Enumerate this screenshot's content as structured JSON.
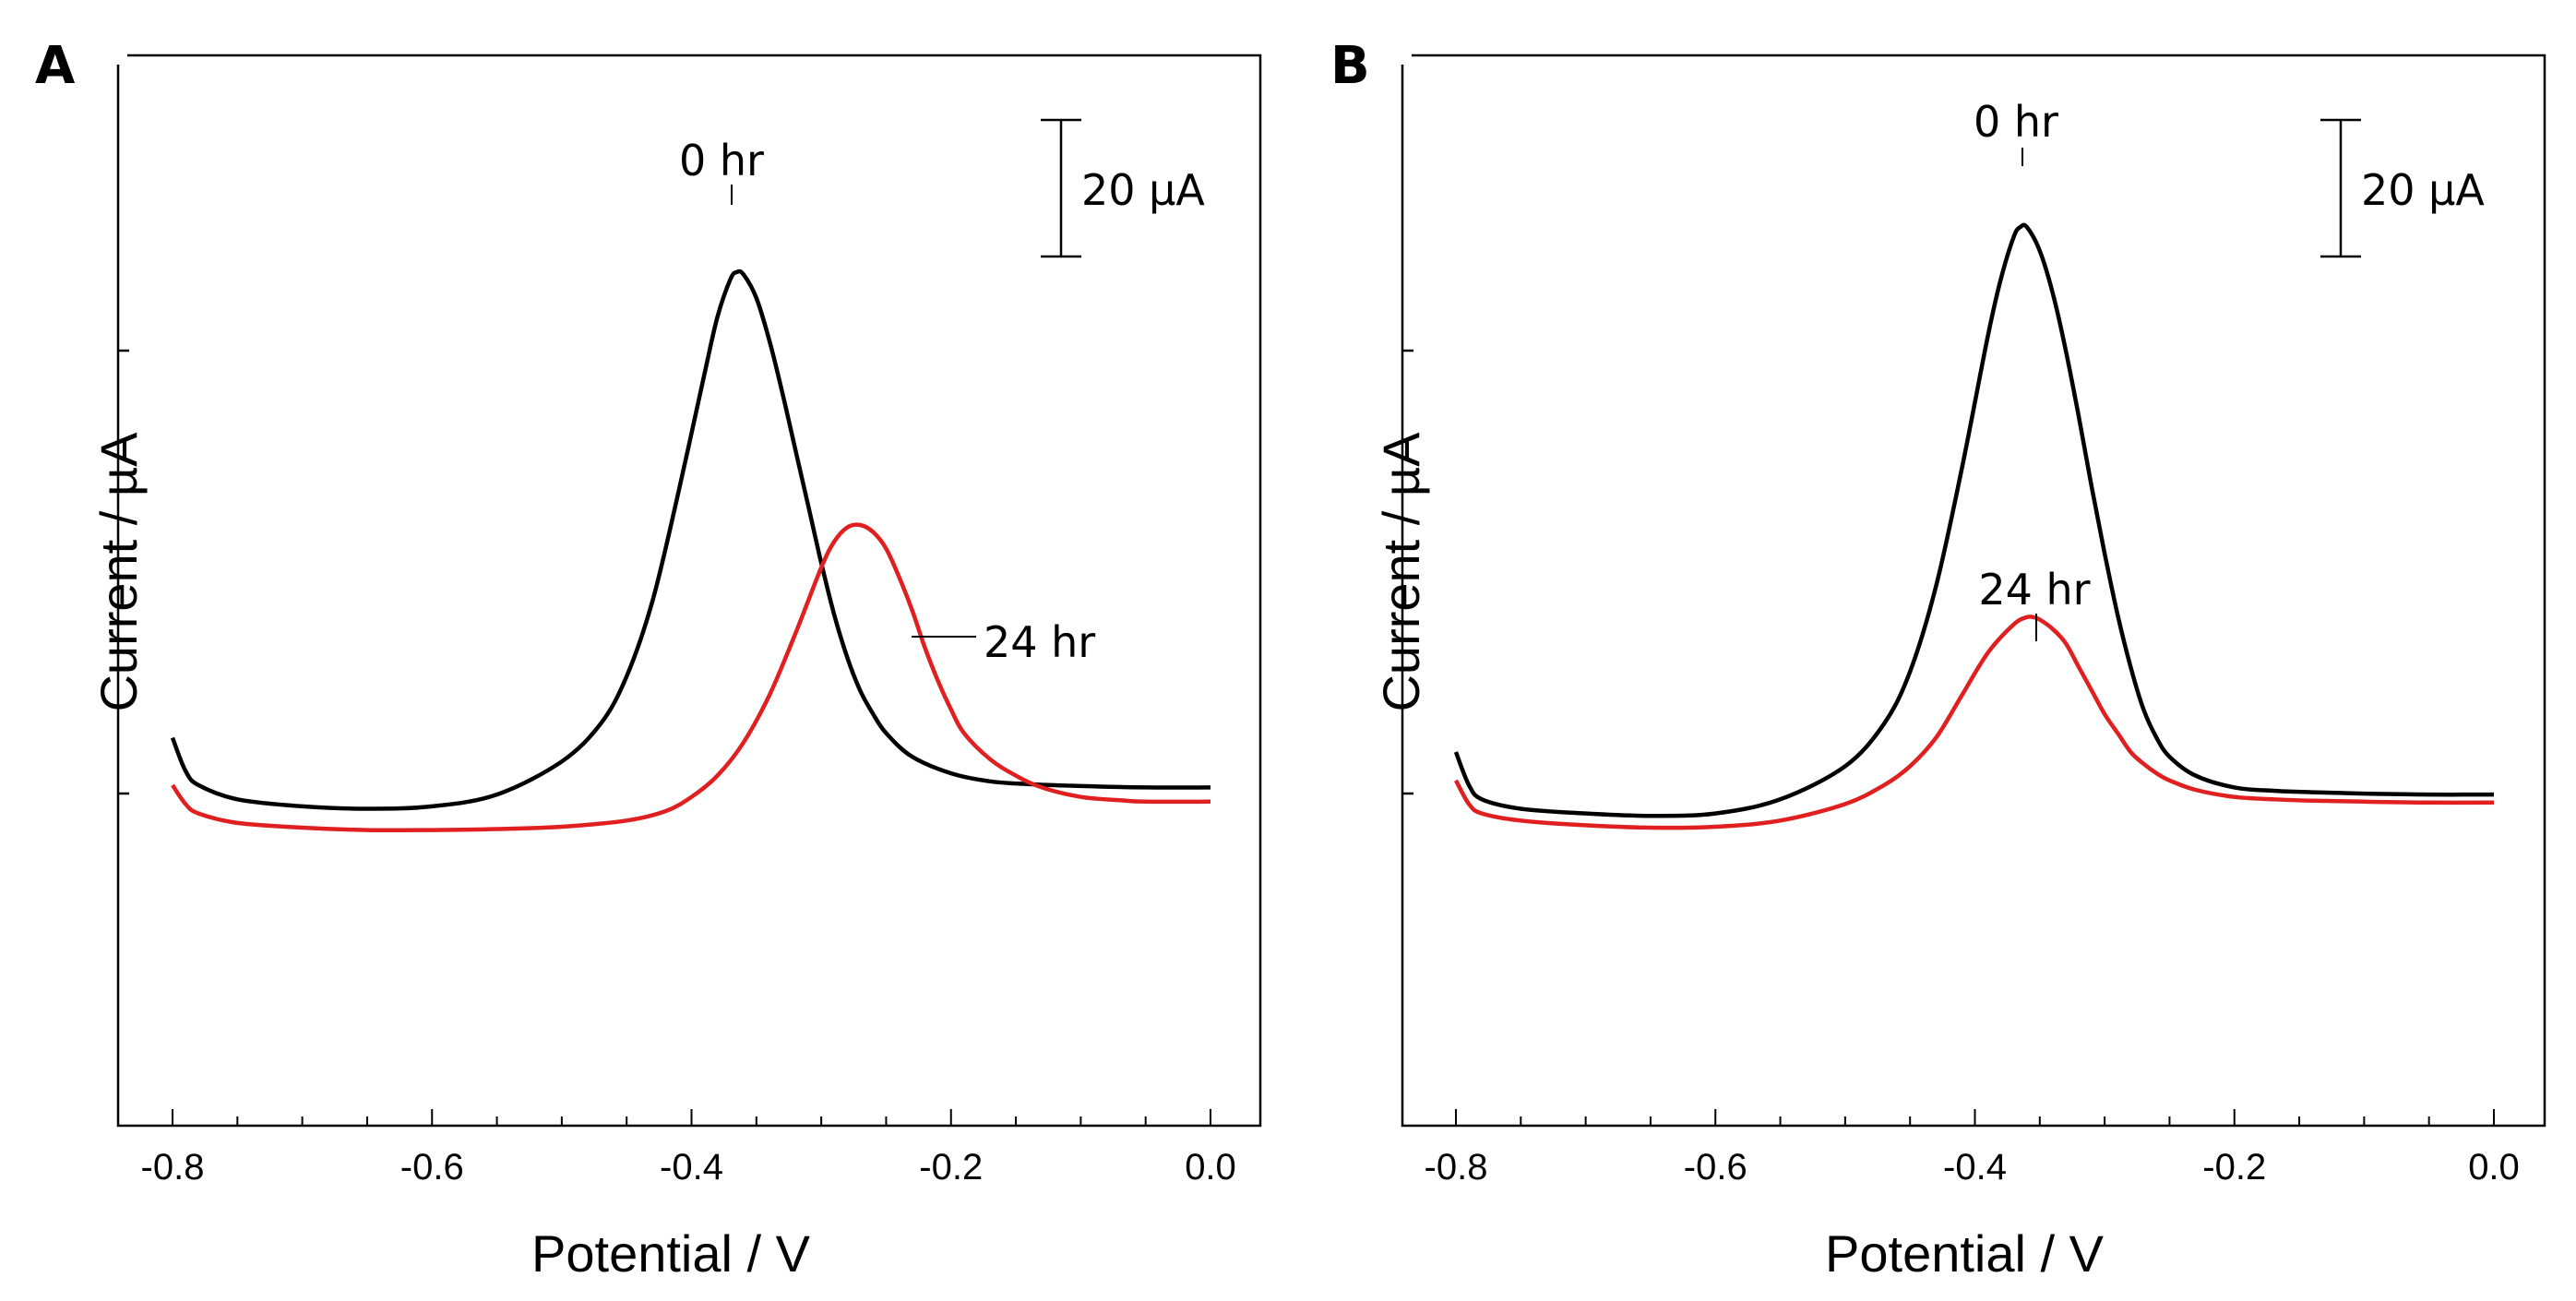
{
  "figure": {
    "panels": [
      {
        "id": "A",
        "label": "A",
        "xlabel": "Potential / V",
        "ylabel": "Current / µA",
        "scale_bar_label": "20 µA",
        "scale_bar_value": 20,
        "xtick_labels": [
          "-0.8",
          "-0.6",
          "-0.4",
          "-0.2",
          "0.0"
        ],
        "annotations": [
          {
            "text": "0 hr",
            "series": "0 hr"
          },
          {
            "text": "24 hr",
            "series": "24 hr"
          }
        ]
      },
      {
        "id": "B",
        "label": "B",
        "xlabel": "Potential / V",
        "ylabel": "Current / µA",
        "scale_bar_label": "20 µA",
        "scale_bar_value": 20,
        "xtick_labels": [
          "-0.8",
          "-0.6",
          "-0.4",
          "-0.2",
          "0.0"
        ],
        "annotations": [
          {
            "text": "0 hr",
            "series": "0 hr"
          },
          {
            "text": "24 hr",
            "series": "24 hr"
          }
        ]
      }
    ]
  },
  "chart_data": [
    {
      "type": "line",
      "panel": "A",
      "xlabel": "Potential / V",
      "ylabel": "Current / µA",
      "xlim": [
        -0.85,
        0.02
      ],
      "ylim": [
        0,
        160
      ],
      "x_major_ticks": [
        -0.8,
        -0.6,
        -0.4,
        -0.2,
        0.0
      ],
      "x_minor_step": 0.05,
      "y_ticks_shown": false,
      "grid": false,
      "series": [
        {
          "name": "0 hr",
          "color": "#000000",
          "x": [
            -0.8,
            -0.79,
            -0.78,
            -0.75,
            -0.7,
            -0.65,
            -0.6,
            -0.55,
            -0.5,
            -0.47,
            -0.45,
            -0.43,
            -0.41,
            -0.39,
            -0.38,
            -0.37,
            -0.365,
            -0.36,
            -0.35,
            -0.34,
            -0.33,
            -0.32,
            -0.31,
            -0.3,
            -0.29,
            -0.28,
            -0.27,
            -0.26,
            -0.25,
            -0.23,
            -0.2,
            -0.17,
            -0.14,
            -0.1,
            -0.05,
            0.0
          ],
          "y": [
            43.0,
            36.0,
            33.0,
            30.0,
            28.5,
            28.0,
            28.5,
            31.0,
            38.0,
            46.0,
            56.0,
            72.0,
            95.0,
            120.0,
            132.0,
            140.0,
            141.5,
            141.0,
            136.0,
            127.0,
            116.0,
            104.0,
            92.0,
            80.0,
            69.0,
            60.0,
            53.0,
            48.0,
            44.0,
            39.0,
            35.5,
            33.8,
            33.2,
            32.8,
            32.5,
            32.5
          ]
        },
        {
          "name": "24 hr",
          "color": "#e02020",
          "x": [
            -0.8,
            -0.79,
            -0.78,
            -0.75,
            -0.7,
            -0.65,
            -0.6,
            -0.55,
            -0.5,
            -0.45,
            -0.42,
            -0.4,
            -0.38,
            -0.36,
            -0.34,
            -0.32,
            -0.3,
            -0.29,
            -0.28,
            -0.27,
            -0.26,
            -0.25,
            -0.24,
            -0.23,
            -0.22,
            -0.21,
            -0.2,
            -0.19,
            -0.17,
            -0.15,
            -0.13,
            -0.1,
            -0.07,
            -0.05,
            0.0
          ],
          "y": [
            33.0,
            29.0,
            27.0,
            25.0,
            24.0,
            23.5,
            23.5,
            23.7,
            24.2,
            25.5,
            27.5,
            30.5,
            35.0,
            42.0,
            52.0,
            65.0,
            79.0,
            84.5,
            87.5,
            88.0,
            86.5,
            83.0,
            77.0,
            70.0,
            62.0,
            55.0,
            49.0,
            44.0,
            38.5,
            35.0,
            32.5,
            30.5,
            29.8,
            29.5,
            29.5
          ]
        }
      ]
    },
    {
      "type": "line",
      "panel": "B",
      "xlabel": "Potential / V",
      "ylabel": "Current / µA",
      "xlim": [
        -0.85,
        0.02
      ],
      "ylim": [
        0,
        160
      ],
      "x_major_ticks": [
        -0.8,
        -0.6,
        -0.4,
        -0.2,
        0.0
      ],
      "x_minor_step": 0.05,
      "y_ticks_shown": false,
      "grid": false,
      "series": [
        {
          "name": "0 hr",
          "color": "#000000",
          "x": [
            -0.8,
            -0.79,
            -0.78,
            -0.75,
            -0.7,
            -0.65,
            -0.6,
            -0.55,
            -0.5,
            -0.47,
            -0.45,
            -0.43,
            -0.41,
            -0.39,
            -0.38,
            -0.37,
            -0.365,
            -0.36,
            -0.35,
            -0.34,
            -0.33,
            -0.32,
            -0.31,
            -0.3,
            -0.29,
            -0.28,
            -0.27,
            -0.26,
            -0.25,
            -0.23,
            -0.2,
            -0.17,
            -0.14,
            -0.1,
            -0.05,
            0.0
          ],
          "y": [
            40.0,
            33.0,
            30.0,
            28.0,
            27.0,
            26.5,
            27.0,
            30.0,
            37.0,
            46.0,
            57.0,
            75.0,
            100.0,
            128.0,
            140.0,
            149.0,
            151.0,
            151.0,
            146.0,
            137.0,
            125.0,
            111.0,
            96.0,
            82.0,
            69.0,
            58.0,
            49.0,
            43.0,
            39.0,
            35.0,
            32.5,
            31.8,
            31.5,
            31.2,
            31.0,
            31.0
          ]
        },
        {
          "name": "24 hr",
          "color": "#e02020",
          "x": [
            -0.8,
            -0.79,
            -0.78,
            -0.75,
            -0.7,
            -0.65,
            -0.6,
            -0.55,
            -0.5,
            -0.47,
            -0.45,
            -0.43,
            -0.41,
            -0.39,
            -0.37,
            -0.36,
            -0.355,
            -0.35,
            -0.34,
            -0.33,
            -0.32,
            -0.31,
            -0.3,
            -0.29,
            -0.28,
            -0.27,
            -0.26,
            -0.25,
            -0.23,
            -0.2,
            -0.17,
            -0.14,
            -0.1,
            -0.05,
            0.0
          ],
          "y": [
            34.0,
            29.0,
            27.0,
            25.5,
            24.5,
            24.0,
            24.2,
            25.5,
            29.0,
            33.0,
            37.0,
            43.0,
            52.0,
            61.0,
            67.0,
            68.5,
            68.5,
            68.0,
            66.0,
            63.0,
            58.0,
            53.0,
            48.0,
            44.0,
            40.0,
            37.5,
            35.5,
            34.0,
            32.0,
            30.5,
            30.0,
            29.7,
            29.5,
            29.3,
            29.3
          ]
        }
      ]
    }
  ]
}
